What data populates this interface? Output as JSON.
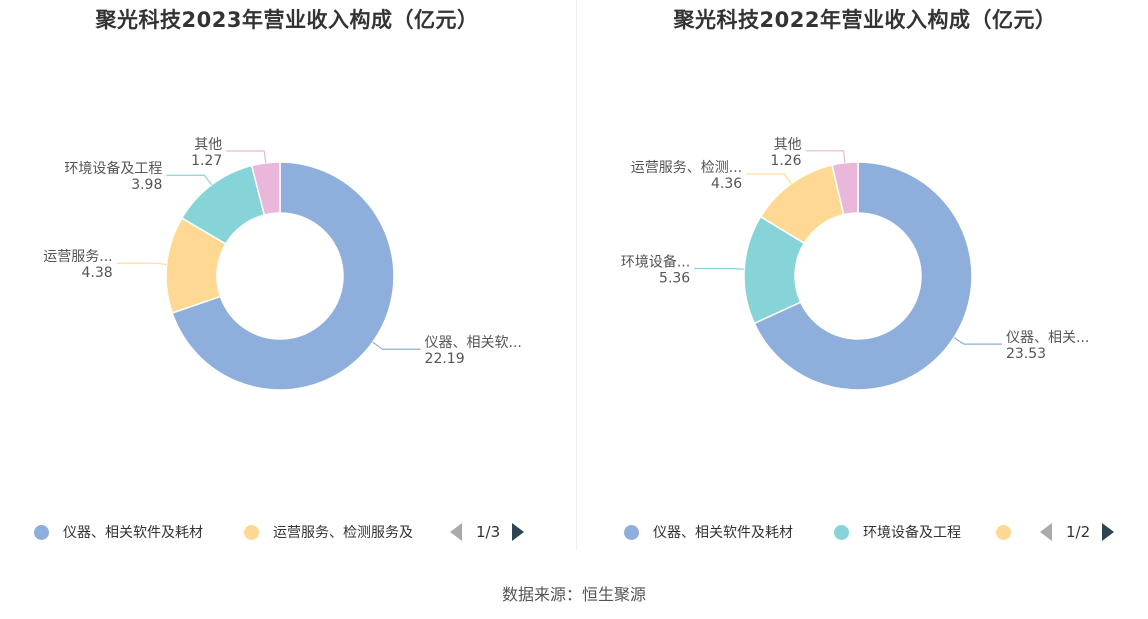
{
  "chart_data": [
    {
      "type": "pie",
      "title": "聚光科技2023年营业收入构成（亿元）",
      "donut": true,
      "slices": [
        {
          "name": "仪器、相关软件及耗材",
          "label": "仪器、相关软...",
          "value": 22.19,
          "value_text": "22.19",
          "color": "#8eaedb"
        },
        {
          "name": "运营服务、检测服务及",
          "label": "运营服务...",
          "value": 4.38,
          "value_text": "4.38",
          "color": "#ffd993"
        },
        {
          "name": "环境设备及工程",
          "label": "环境设备及工程",
          "value": 3.98,
          "value_text": "3.98",
          "color": "#86d4d8"
        },
        {
          "name": "其他",
          "label": "其他",
          "value": 1.27,
          "value_text": "1.27",
          "color": "#e8b7da"
        }
      ],
      "legend": {
        "items": [
          {
            "label": "仪器、相关软件及耗材",
            "color": "#8eaedb"
          },
          {
            "label": "运营服务、检测服务及",
            "color": "#ffd993"
          }
        ],
        "page": "1/3",
        "placement": "bottom"
      }
    },
    {
      "type": "pie",
      "title": "聚光科技2022年营业收入构成（亿元）",
      "donut": true,
      "slices": [
        {
          "name": "仪器、相关软件及耗材",
          "label": "仪器、相关...",
          "value": 23.53,
          "value_text": "23.53",
          "color": "#8eaedb"
        },
        {
          "name": "环境设备及工程",
          "label": "环境设备...",
          "value": 5.36,
          "value_text": "5.36",
          "color": "#86d4d8"
        },
        {
          "name": "运营服务、检测服务",
          "label": "运营服务、检测...",
          "value": 4.36,
          "value_text": "4.36",
          "color": "#ffd993"
        },
        {
          "name": "其他",
          "label": "其他",
          "value": 1.26,
          "value_text": "1.26",
          "color": "#e8b7da"
        }
      ],
      "legend": {
        "items": [
          {
            "label": "仪器、相关软件及耗材",
            "color": "#8eaedb"
          },
          {
            "label": "环境设备及工程",
            "color": "#86d4d8"
          },
          {
            "label": "",
            "color": "#ffd993"
          }
        ],
        "page": "1/2",
        "placement": "bottom"
      }
    }
  ],
  "source": "数据来源：恒生聚源"
}
